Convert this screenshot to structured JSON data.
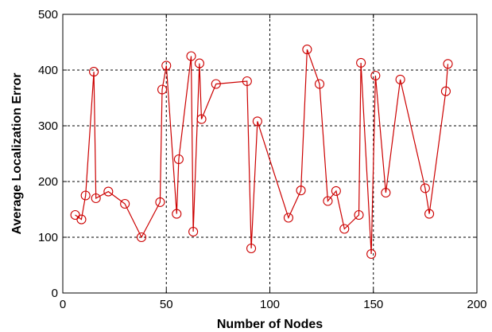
{
  "chart_data": {
    "type": "line",
    "title": "",
    "xlabel": "Number of Nodes",
    "ylabel": "Average Localization Error",
    "xlim": [
      0,
      200
    ],
    "ylim": [
      0,
      500
    ],
    "xticks": [
      "0",
      "50",
      "100",
      "150",
      "200"
    ],
    "yticks": [
      "0",
      "100",
      "200",
      "300",
      "400",
      "500"
    ],
    "grid": true,
    "legend": "none",
    "marker": "circle",
    "colors": {
      "series": "#cc0000",
      "grid": "#000000",
      "axes": "#000000",
      "background": "#ffffff"
    },
    "series": [
      {
        "x": [
          6,
          9,
          11,
          15,
          16,
          22,
          30,
          38,
          47,
          48,
          50,
          55,
          56,
          62,
          63,
          66,
          67,
          74,
          89,
          91,
          94,
          109,
          115,
          118,
          124,
          128,
          132,
          136,
          143,
          144,
          149,
          151,
          156,
          163,
          175,
          177,
          185,
          186
        ],
        "y": [
          140,
          132,
          175,
          397,
          170,
          182,
          160,
          100,
          163,
          365,
          408,
          142,
          240,
          425,
          110,
          412,
          312,
          375,
          380,
          80,
          308,
          135,
          184,
          437,
          375,
          165,
          183,
          115,
          140,
          413,
          70,
          390,
          180,
          383,
          188,
          142,
          362,
          411
        ]
      }
    ]
  }
}
